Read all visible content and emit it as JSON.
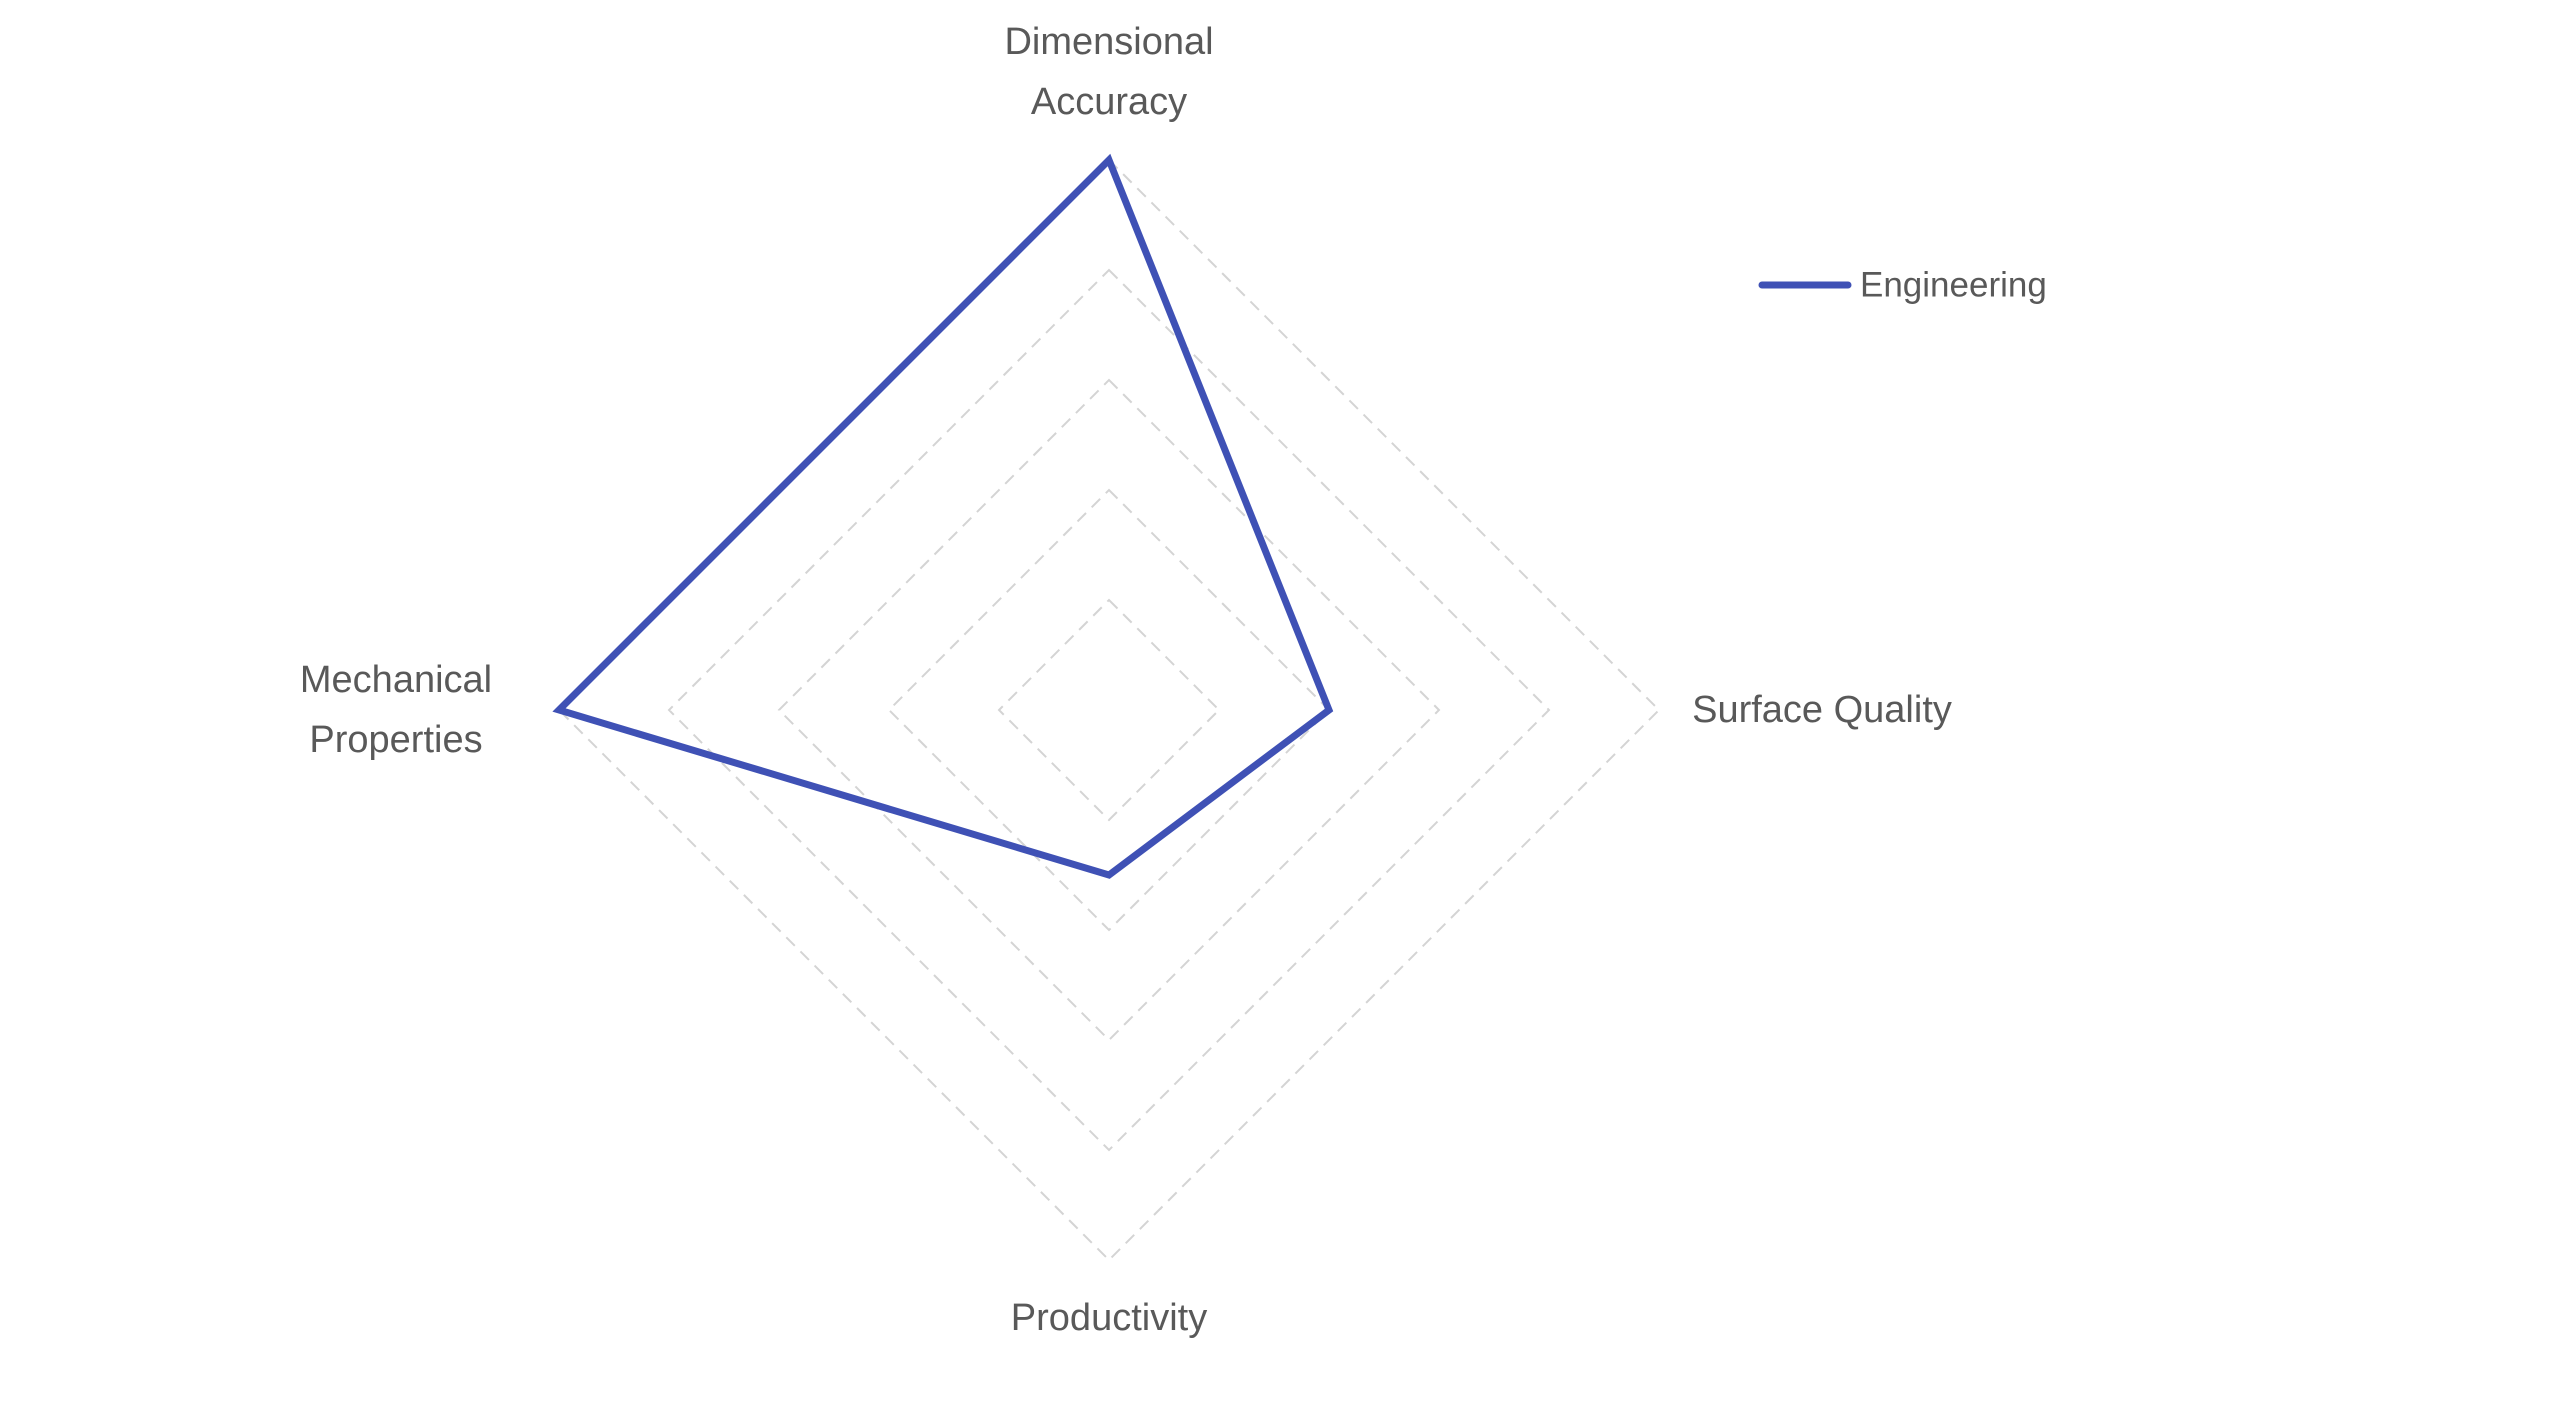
{
  "chart_data": {
    "type": "radar",
    "categories": [
      "Dimensional Accuracy",
      "Surface Quality",
      "Productivity",
      "Mechanical Properties"
    ],
    "series": [
      {
        "name": "Engineering",
        "color": "#3f51b5",
        "values": [
          5,
          2,
          1.5,
          5
        ]
      }
    ],
    "rlim": [
      0,
      5
    ],
    "rticks": [
      1,
      2,
      3,
      4,
      5
    ],
    "grid": true,
    "legend": "top-right"
  }
}
